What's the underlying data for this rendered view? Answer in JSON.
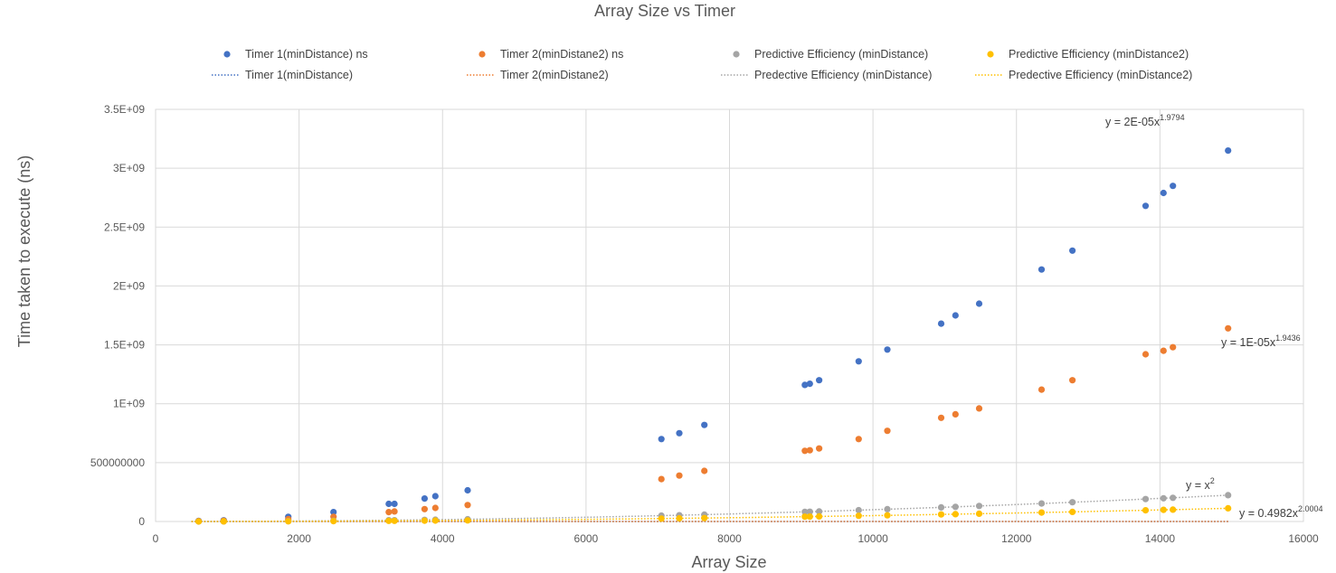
{
  "chart_data": {
    "type": "scatter",
    "title": "Array Size vs Timer",
    "xlabel": "Array Size",
    "ylabel": "Time taken to execute (ns)",
    "xlim": [
      0,
      16000
    ],
    "ylim": [
      0,
      3500000000
    ],
    "grid": true,
    "legend_position": "top",
    "x_ticks": [
      {
        "value": 0,
        "label": "0"
      },
      {
        "value": 2000,
        "label": "2000"
      },
      {
        "value": 4000,
        "label": "4000"
      },
      {
        "value": 6000,
        "label": "6000"
      },
      {
        "value": 8000,
        "label": "8000"
      },
      {
        "value": 10000,
        "label": "10000"
      },
      {
        "value": 12000,
        "label": "12000"
      },
      {
        "value": 14000,
        "label": "14000"
      },
      {
        "value": 16000,
        "label": "16000"
      }
    ],
    "y_ticks": [
      {
        "value": 0,
        "label": "0"
      },
      {
        "value": 500000000,
        "label": "500000000"
      },
      {
        "value": 1000000000,
        "label": "1E+09"
      },
      {
        "value": 1500000000,
        "label": "1.5E+09"
      },
      {
        "value": 2000000000,
        "label": "2E+09"
      },
      {
        "value": 2500000000,
        "label": "2.5E+09"
      },
      {
        "value": 3000000000,
        "label": "3E+09"
      },
      {
        "value": 3500000000,
        "label": "3.5E+09"
      }
    ],
    "series": [
      {
        "name": "Timer 1(minDistance) ns",
        "color": "#4472C4",
        "x": [
          600,
          950,
          1850,
          2480,
          3250,
          3330,
          3750,
          3900,
          4350,
          7050,
          7300,
          7650,
          9050,
          9120,
          9250,
          9800,
          10200,
          10950,
          11150,
          11480,
          12350,
          12780,
          13800,
          14050,
          14180,
          14950
        ],
        "y": [
          5000000,
          10000000,
          40000000,
          80000000,
          150000000,
          150000000,
          195000000,
          215000000,
          265000000,
          700000000,
          750000000,
          820000000,
          1160000000,
          1170000000,
          1200000000,
          1360000000,
          1460000000,
          1680000000,
          1750000000,
          1850000000,
          2140000000,
          2300000000,
          2680000000,
          2790000000,
          2850000000,
          3150000000
        ]
      },
      {
        "name": "Timer 2(minDistane2) ns",
        "color": "#ED7D31",
        "x": [
          600,
          950,
          1850,
          2480,
          3250,
          3330,
          3750,
          3900,
          4350,
          7050,
          7300,
          7650,
          9050,
          9120,
          9250,
          9800,
          10200,
          10950,
          11150,
          11480,
          12350,
          12780,
          13800,
          14050,
          14180,
          14950
        ],
        "y": [
          3000000,
          6000000,
          20000000,
          40000000,
          80000000,
          85000000,
          105000000,
          115000000,
          140000000,
          360000000,
          390000000,
          430000000,
          600000000,
          605000000,
          620000000,
          700000000,
          770000000,
          880000000,
          910000000,
          960000000,
          1120000000,
          1200000000,
          1420000000,
          1450000000,
          1480000000,
          1640000000
        ]
      },
      {
        "name": "Predictive Efficiency (minDistance)",
        "color": "#A5A5A5",
        "x": [
          600,
          950,
          1850,
          2480,
          3250,
          3330,
          3750,
          3900,
          4350,
          7050,
          7300,
          7650,
          9050,
          9120,
          9250,
          9800,
          10200,
          10950,
          11150,
          11480,
          12350,
          12780,
          13800,
          14050,
          14180,
          14950
        ],
        "y": [
          360000,
          900000,
          3420000,
          6150000,
          10560000,
          11090000,
          14060000,
          15210000,
          18920000,
          49700000,
          53290000,
          58520000,
          81900000,
          83170000,
          85560000,
          96040000,
          104040000,
          119900000,
          124320000,
          131790000,
          152520000,
          163330000,
          190440000,
          197400000,
          201070000,
          223500000
        ]
      },
      {
        "name": "Predictive Efficiency (minDistance2)",
        "color": "#FFC000",
        "x": [
          600,
          950,
          1850,
          2480,
          3250,
          3330,
          3750,
          3900,
          4350,
          7050,
          7300,
          7650,
          9050,
          9120,
          9250,
          9800,
          10200,
          10950,
          11150,
          11480,
          12350,
          12780,
          13800,
          14050,
          14180,
          14950
        ],
        "y": [
          180000,
          450000,
          1710000,
          3080000,
          5280000,
          5550000,
          7030000,
          7610000,
          9460000,
          24850000,
          26650000,
          29260000,
          40950000,
          41590000,
          42780000,
          48020000,
          52020000,
          59950000,
          62160000,
          65900000,
          76260000,
          81670000,
          95220000,
          98700000,
          100540000,
          111750000
        ]
      }
    ],
    "trendlines": [
      {
        "name": "Timer 1(minDistance)",
        "color": "#4472C4",
        "coef": 2e-05,
        "exp": 1.9794,
        "label_base": "y = 2E-05x",
        "label_exp": "1.9794"
      },
      {
        "name": "Timer 2(minDistane2)",
        "color": "#ED7D31",
        "coef": 1e-05,
        "exp": 1.9436,
        "label_base": "y = 1E-05x",
        "label_exp": "1.9436"
      },
      {
        "name": "Predective Efficiency (minDistance)",
        "color": "#A5A5A5",
        "coef": 1,
        "exp": 2,
        "label_base": "y = x",
        "label_exp": "2"
      },
      {
        "name": "Predective Efficiency (minDistance2)",
        "color": "#FFC000",
        "coef": 0.4982,
        "exp": 2.0004,
        "label_base": "y = 0.4982x",
        "label_exp": "2.0004"
      }
    ]
  }
}
